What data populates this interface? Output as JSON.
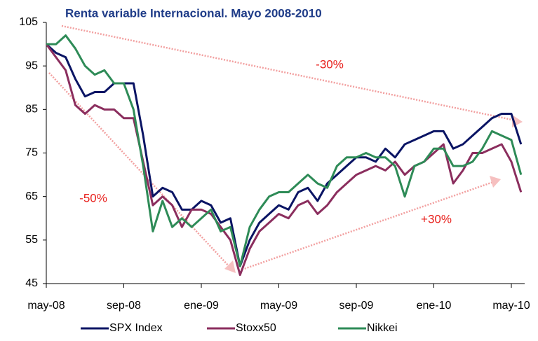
{
  "chart_data": {
    "type": "line",
    "title": "Renta variable Internacional. Mayo 2008-2010",
    "categories": [
      "may-08",
      null,
      null,
      null,
      null,
      null,
      null,
      null,
      "sep-08",
      null,
      null,
      null,
      null,
      null,
      null,
      null,
      "ene-09",
      null,
      null,
      null,
      null,
      null,
      null,
      null,
      "may-09",
      null,
      null,
      null,
      null,
      null,
      null,
      null,
      "sep-09",
      null,
      null,
      null,
      null,
      null,
      null,
      null,
      "ene-10",
      null,
      null,
      null,
      null,
      null,
      null,
      null,
      "may-10",
      null
    ],
    "series": [
      {
        "name": "SPX Index",
        "color": "#0a1464",
        "values": [
          100,
          98,
          97,
          92,
          88,
          89,
          89,
          91,
          91,
          91,
          79,
          65,
          67,
          66,
          62,
          62,
          64,
          63,
          59,
          60,
          49,
          55,
          59,
          61,
          63,
          62,
          66,
          67,
          64,
          68,
          70,
          72,
          74,
          74,
          73,
          76,
          74,
          77,
          78,
          79,
          80,
          80,
          76,
          77,
          79,
          81,
          83,
          84,
          84,
          77
        ]
      },
      {
        "name": "Stoxx50",
        "color": "#8b2e5e",
        "values": [
          100,
          97,
          94,
          86,
          84,
          86,
          85,
          85,
          83,
          83,
          73,
          63,
          65,
          63,
          58,
          62,
          62,
          61,
          58,
          55,
          47,
          53,
          57,
          59,
          61,
          60,
          63,
          64,
          61,
          63,
          66,
          68,
          70,
          71,
          72,
          71,
          73,
          70,
          72,
          73,
          75,
          77,
          68,
          71,
          75,
          75,
          76,
          77,
          73,
          66
        ]
      },
      {
        "name": "Nikkei",
        "color": "#2e8b57",
        "values": [
          100,
          100,
          102,
          99,
          95,
          93,
          94,
          91,
          91,
          85,
          72,
          57,
          64,
          58,
          60,
          58,
          60,
          62,
          57,
          58,
          49,
          58,
          62,
          65,
          66,
          66,
          68,
          70,
          68,
          67,
          72,
          74,
          74,
          75,
          74,
          74,
          72,
          65,
          72,
          73,
          76,
          76,
          72,
          72,
          73,
          76,
          80,
          79,
          78,
          70
        ]
      }
    ],
    "ylim": [
      45,
      105
    ],
    "yticks": [
      45,
      55,
      65,
      75,
      85,
      95,
      105
    ],
    "annotations": [
      "-30%",
      "-50%",
      "+30%"
    ]
  }
}
